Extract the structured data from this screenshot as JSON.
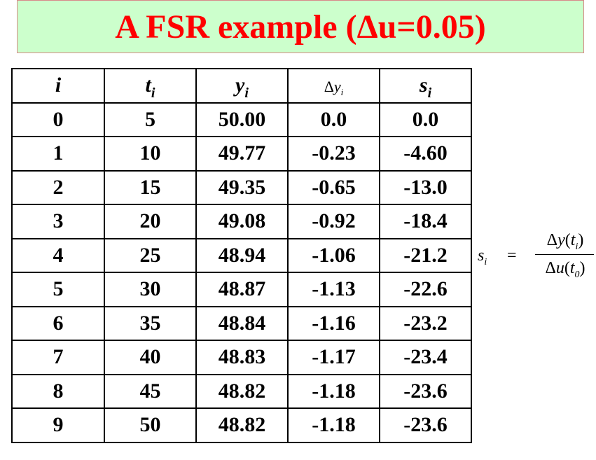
{
  "title": {
    "prefix": "A FSR example (",
    "delta": "Δ",
    "suffix": "u=0.05)"
  },
  "table": {
    "headers": [
      {
        "var": "i",
        "sub": ""
      },
      {
        "var": "t",
        "sub": "i"
      },
      {
        "var": "y",
        "sub": "i"
      },
      {
        "delta": "Δ",
        "var": "y",
        "sub": "i"
      },
      {
        "var": "s",
        "sub": "i"
      }
    ],
    "rows": [
      [
        "0",
        "5",
        "50.00",
        "0.0",
        "0.0"
      ],
      [
        "1",
        "10",
        "49.77",
        "-0.23",
        "-4.60"
      ],
      [
        "2",
        "15",
        "49.35",
        "-0.65",
        "-13.0"
      ],
      [
        "3",
        "20",
        "49.08",
        "-0.92",
        "-18.4"
      ],
      [
        "4",
        "25",
        "48.94",
        "-1.06",
        "-21.2"
      ],
      [
        "5",
        "30",
        "48.87",
        "-1.13",
        "-22.6"
      ],
      [
        "6",
        "35",
        "48.84",
        "-1.16",
        "-23.2"
      ],
      [
        "7",
        "40",
        "48.83",
        "-1.17",
        "-23.4"
      ],
      [
        "8",
        "45",
        "48.82",
        "-1.18",
        "-23.6"
      ],
      [
        "9",
        "50",
        "48.82",
        "-1.18",
        "-23.6"
      ]
    ]
  },
  "formula": {
    "lhs_var": "s",
    "lhs_sub": "i",
    "eq": "=",
    "num": {
      "delta": "Δ",
      "var": "y",
      "open": "(",
      "arg": "t",
      "arg_sub": "i",
      "close": ")"
    },
    "den": {
      "delta": "Δ",
      "var": "u",
      "open": "(",
      "arg": "t",
      "arg_sub": "0",
      "close": ")"
    }
  },
  "colors": {
    "title_text": "#ff0000",
    "title_background": "#ccffcc",
    "title_border": "#d88a8a"
  }
}
